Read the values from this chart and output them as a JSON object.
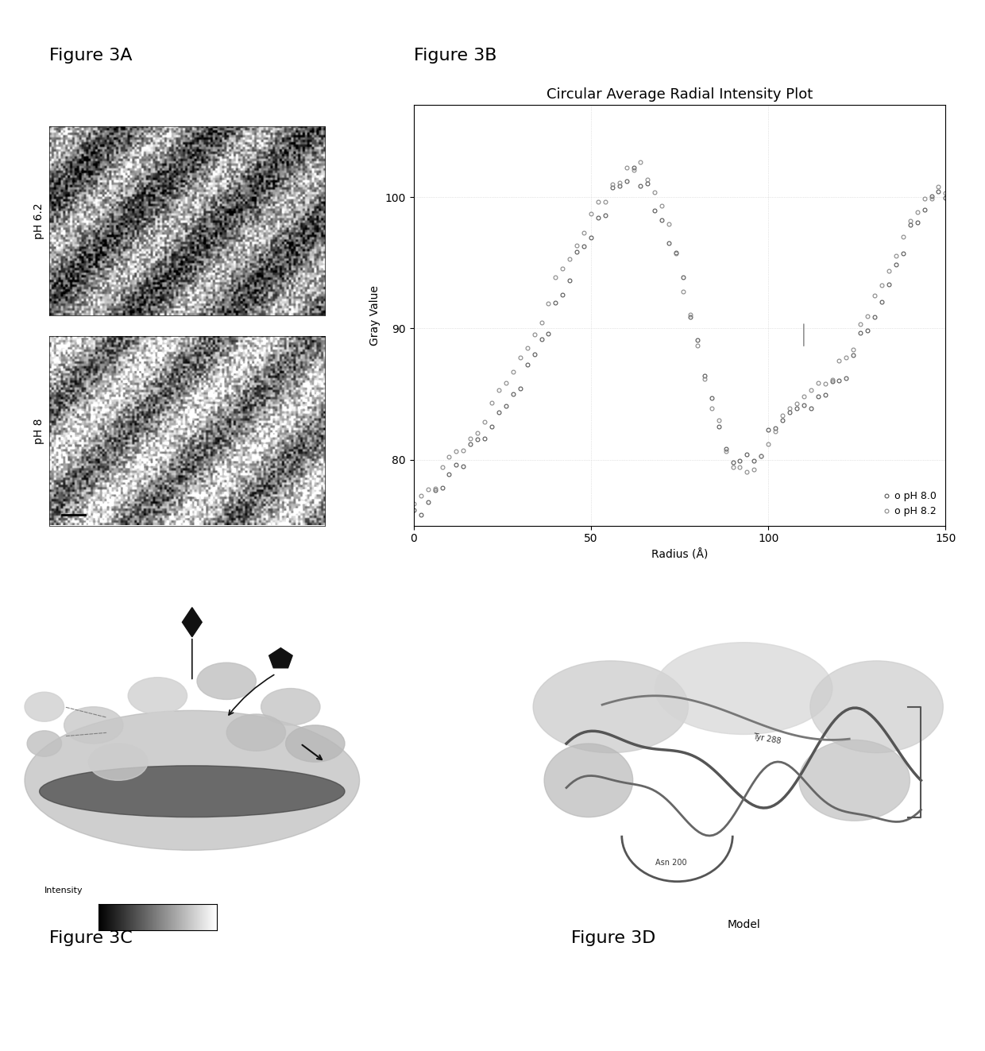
{
  "fig3A_label": "Figure 3A",
  "fig3B_label": "Figure 3B",
  "fig3C_label": "Figure 3C",
  "fig3D_label": "Figure 3D",
  "plot_title": "Circular Average Radial Intensity Plot",
  "xlabel": "Radius (Å)",
  "ylabel": "Gray Value",
  "xlim": [
    0,
    150
  ],
  "ylim": [
    75,
    107
  ],
  "yticks": [
    80,
    90,
    100
  ],
  "xticks": [
    0,
    50,
    100,
    150
  ],
  "legend_labels": [
    "o pH 8.0",
    "o pH 8.2"
  ],
  "bg_color": "#ffffff",
  "panel_bg": "#f5f5f5",
  "grid_color": "#cccccc",
  "line_color1": "#555555",
  "line_color2": "#888888",
  "ph80_x": [
    0,
    2,
    4,
    6,
    8,
    10,
    12,
    14,
    16,
    18,
    20,
    22,
    24,
    26,
    28,
    30,
    32,
    34,
    36,
    38,
    40,
    42,
    44,
    46,
    48,
    50,
    52,
    54,
    56,
    58,
    60,
    62,
    64,
    66,
    68,
    70,
    72,
    74,
    76,
    78,
    80,
    82,
    84,
    86,
    88,
    90,
    92,
    94,
    96,
    98,
    100,
    102,
    104,
    106,
    108,
    110,
    112,
    114,
    116,
    118,
    120,
    122,
    124,
    126,
    128,
    130,
    132,
    134,
    136,
    138,
    140,
    142,
    144,
    146,
    148,
    150
  ],
  "ph80_y": [
    75.5,
    76.0,
    76.8,
    77.5,
    78.2,
    78.9,
    79.6,
    80.2,
    80.8,
    81.3,
    81.9,
    82.6,
    83.4,
    84.2,
    85.1,
    86.0,
    87.0,
    88.0,
    89.1,
    90.2,
    91.3,
    92.5,
    93.8,
    95.0,
    96.3,
    97.5,
    98.6,
    99.5,
    100.3,
    101.0,
    101.5,
    101.8,
    101.5,
    100.8,
    99.8,
    98.5,
    97.0,
    95.2,
    93.2,
    91.0,
    88.8,
    86.5,
    84.5,
    82.8,
    81.5,
    80.5,
    79.8,
    79.5,
    79.8,
    80.5,
    81.5,
    82.3,
    83.0,
    83.5,
    84.0,
    84.3,
    84.5,
    84.6,
    85.0,
    85.5,
    86.2,
    87.0,
    88.0,
    89.0,
    90.0,
    91.2,
    92.5,
    93.8,
    95.0,
    96.2,
    97.3,
    98.2,
    99.0,
    99.5,
    99.8,
    100.0
  ],
  "ph82_x": [
    0,
    2,
    4,
    6,
    8,
    10,
    12,
    14,
    16,
    18,
    20,
    22,
    24,
    26,
    28,
    30,
    32,
    34,
    36,
    38,
    40,
    42,
    44,
    46,
    48,
    50,
    52,
    54,
    56,
    58,
    60,
    62,
    64,
    66,
    68,
    70,
    72,
    74,
    76,
    78,
    80,
    82,
    84,
    86,
    88,
    90,
    92,
    94,
    96,
    98,
    100,
    102,
    104,
    106,
    108,
    110,
    112,
    114,
    116,
    118,
    120,
    122,
    124,
    126,
    128,
    130,
    132,
    134,
    136,
    138,
    140,
    142,
    144,
    146,
    148,
    150
  ],
  "ph82_y": [
    76.5,
    77.0,
    77.8,
    78.5,
    79.2,
    79.9,
    80.5,
    81.1,
    81.7,
    82.3,
    83.0,
    83.8,
    84.7,
    85.6,
    86.5,
    87.5,
    88.5,
    89.6,
    90.7,
    91.9,
    93.0,
    94.2,
    95.4,
    96.5,
    97.6,
    98.6,
    99.5,
    100.2,
    100.8,
    101.3,
    101.7,
    102.0,
    102.0,
    101.5,
    100.5,
    99.2,
    97.5,
    95.5,
    93.3,
    91.0,
    88.7,
    86.3,
    84.2,
    82.3,
    80.8,
    79.8,
    79.2,
    79.0,
    79.3,
    80.0,
    81.0,
    82.0,
    83.0,
    83.8,
    84.5,
    85.0,
    85.5,
    85.8,
    86.2,
    86.8,
    87.5,
    88.3,
    89.2,
    90.2,
    91.2,
    92.3,
    93.5,
    94.8,
    96.0,
    97.2,
    98.3,
    99.2,
    100.0,
    100.5,
    100.8,
    101.0
  ],
  "marker_size": 3.5,
  "font_size_title": 13,
  "font_size_labels": 10,
  "font_size_legend": 9,
  "font_size_panel_labels": 16
}
